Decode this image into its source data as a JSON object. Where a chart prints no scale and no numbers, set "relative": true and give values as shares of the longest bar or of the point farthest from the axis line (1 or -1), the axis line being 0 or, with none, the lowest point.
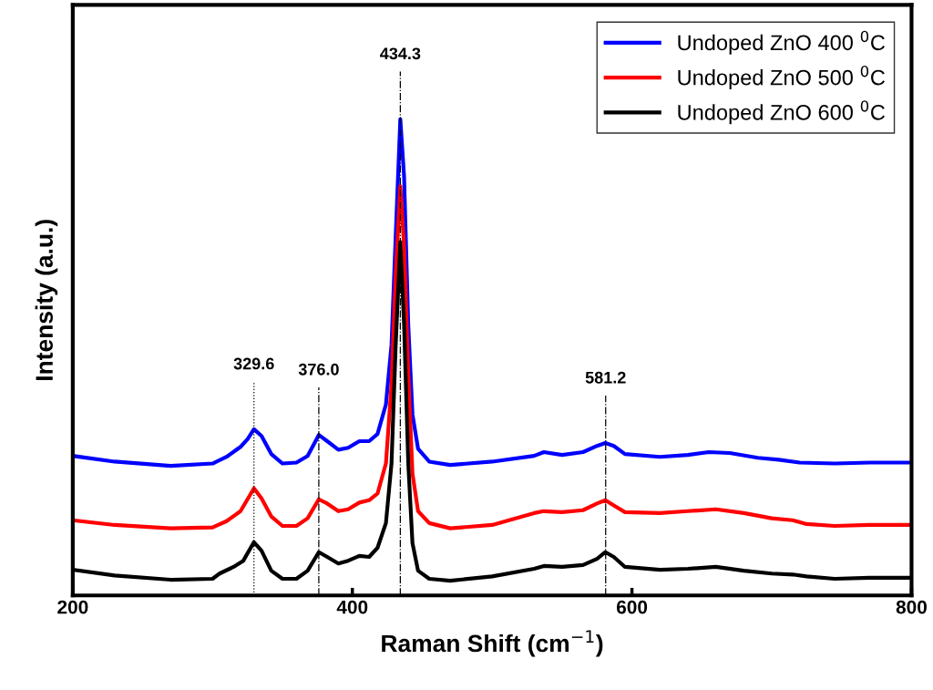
{
  "chart_data": {
    "type": "line",
    "relative": true,
    "xlabel": "Raman Shift (cm$^{−1}$)",
    "ylabel": "Intensity (a.u.)",
    "xlim": [
      200,
      800
    ],
    "xticks": [
      200,
      400,
      600,
      800
    ],
    "tick_labels": "x",
    "grid": false,
    "legend": "top right",
    "marker": "none",
    "line_style": "solid",
    "series": [
      {
        "name": "Undoped ZnO 400 $^{0}$C",
        "color": "#0000ff",
        "x": [
          200,
          230,
          270,
          300,
          310,
          320,
          325,
          329.6,
          335,
          342,
          350,
          360,
          368,
          376,
          382,
          390,
          397,
          405,
          412,
          418,
          424,
          428,
          431,
          434.3,
          437,
          440,
          443,
          447,
          455,
          470,
          500,
          530,
          537,
          550,
          565,
          575,
          581,
          587,
          595,
          620,
          640,
          655,
          670,
          690,
          705,
          720,
          745,
          770,
          800
        ],
        "values": [
          0.293,
          0.281,
          0.272,
          0.277,
          0.291,
          0.312,
          0.328,
          0.349,
          0.335,
          0.297,
          0.277,
          0.279,
          0.293,
          0.337,
          0.324,
          0.306,
          0.31,
          0.324,
          0.324,
          0.339,
          0.401,
          0.526,
          0.755,
          1,
          0.879,
          0.568,
          0.38,
          0.308,
          0.281,
          0.274,
          0.281,
          0.293,
          0.301,
          0.295,
          0.301,
          0.314,
          0.32,
          0.314,
          0.297,
          0.291,
          0.295,
          0.301,
          0.299,
          0.289,
          0.285,
          0.279,
          0.277,
          0.279,
          0.279
        ]
      },
      {
        "name": "Undoped ZnO 500 $^{0}$C",
        "color": "#ff0000",
        "x": [
          200,
          230,
          270,
          300,
          310,
          320,
          325,
          329.6,
          335,
          342,
          350,
          360,
          368,
          376,
          382,
          390,
          397,
          405,
          412,
          418,
          424,
          428,
          431,
          434.3,
          437,
          440,
          443,
          447,
          455,
          470,
          500,
          530,
          537,
          550,
          565,
          575,
          581,
          587,
          595,
          620,
          640,
          660,
          680,
          700,
          715,
          725,
          745,
          770,
          800
        ],
        "values": [
          0.158,
          0.148,
          0.141,
          0.143,
          0.156,
          0.177,
          0.202,
          0.225,
          0.204,
          0.166,
          0.146,
          0.146,
          0.162,
          0.202,
          0.193,
          0.177,
          0.181,
          0.195,
          0.2,
          0.214,
          0.277,
          0.443,
          0.672,
          0.859,
          0.734,
          0.464,
          0.256,
          0.177,
          0.152,
          0.141,
          0.148,
          0.173,
          0.177,
          0.175,
          0.179,
          0.193,
          0.2,
          0.189,
          0.175,
          0.173,
          0.177,
          0.181,
          0.173,
          0.162,
          0.158,
          0.15,
          0.146,
          0.148,
          0.148
        ]
      },
      {
        "name": "Undoped ZnO 600 $^{0}$C",
        "color": "#000000",
        "x": [
          200,
          230,
          270,
          300,
          305,
          315,
          322,
          329.6,
          335,
          342,
          350,
          360,
          368,
          376,
          382,
          390,
          397,
          405,
          412,
          418,
          424,
          428,
          431,
          434.3,
          437,
          440,
          443,
          447,
          455,
          470,
          500,
          530,
          537,
          550,
          565,
          575,
          581,
          587,
          595,
          620,
          640,
          660,
          680,
          700,
          715,
          725,
          745,
          770,
          800
        ],
        "values": [
          0.054,
          0.042,
          0.033,
          0.035,
          0.046,
          0.06,
          0.073,
          0.112,
          0.094,
          0.052,
          0.035,
          0.035,
          0.052,
          0.091,
          0.081,
          0.067,
          0.073,
          0.083,
          0.081,
          0.1,
          0.152,
          0.277,
          0.526,
          0.742,
          0.568,
          0.277,
          0.11,
          0.052,
          0.035,
          0.031,
          0.04,
          0.056,
          0.062,
          0.06,
          0.064,
          0.077,
          0.091,
          0.081,
          0.06,
          0.054,
          0.056,
          0.06,
          0.052,
          0.046,
          0.044,
          0.04,
          0.035,
          0.037,
          0.037
        ]
      }
    ],
    "ref_lines": [
      {
        "axis": "x",
        "value": 329.6,
        "line_style": "dotted",
        "color": "#000000",
        "label": "329.6"
      },
      {
        "axis": "x",
        "value": 376.0,
        "line_style": "dashdot",
        "color": "#000000",
        "label": "376.0"
      },
      {
        "axis": "x",
        "value": 434.3,
        "line_style": "dashdot",
        "color": "#000000",
        "label": "434.3"
      },
      {
        "axis": "x",
        "value": 581.2,
        "line_style": "dashdot",
        "color": "#000000",
        "label": "581.2"
      }
    ]
  }
}
